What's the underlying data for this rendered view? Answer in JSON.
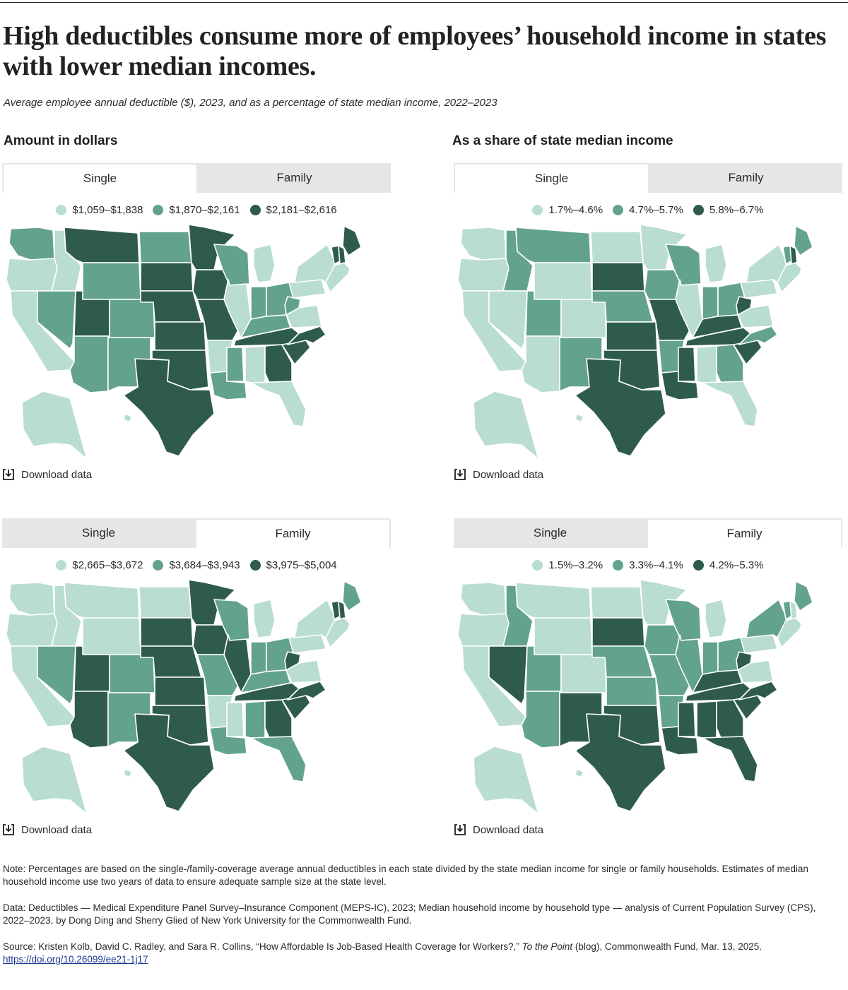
{
  "title": "High deductibles consume more of employees’ household income in states with lower median incomes.",
  "subtitle": "Average employee annual deductible ($), 2023, and as a percentage of state median income, 2022–2023",
  "sections": {
    "left": "Amount in dollars",
    "right": "As a share of state median income"
  },
  "colors": {
    "light": "#b9ddd1",
    "medium": "#62a28e",
    "dark": "#2f5b4f",
    "tab_bg": "#e6e6e6"
  },
  "download_label": "Download data",
  "panels": [
    {
      "tabs": [
        "Single",
        "Family"
      ],
      "active_tab": "Single",
      "legend": [
        "$1,059–$1,838",
        "$1,870–$2,161",
        "$2,181–$2,616"
      ],
      "states": {
        "WA": "medium",
        "OR": "light",
        "CA": "light",
        "ID": "light",
        "NV": "medium",
        "MT": "dark",
        "WY": "medium",
        "UT": "dark",
        "AZ": "medium",
        "CO": "medium",
        "NM": "medium",
        "ND": "medium",
        "SD": "dark",
        "NE": "dark",
        "KS": "dark",
        "OK": "dark",
        "TX": "dark",
        "MN": "dark",
        "IA": "dark",
        "MO": "dark",
        "AR": "light",
        "LA": "medium",
        "WI": "medium",
        "IL": "light",
        "MS": "medium",
        "MI": "light",
        "IN": "medium",
        "KY": "medium",
        "TN": "dark",
        "AL": "light",
        "OH": "medium",
        "WV": "medium",
        "GA": "dark",
        "FL": "light",
        "SC": "dark",
        "NC": "dark",
        "VA": "light",
        "PA": "light",
        "NY": "light",
        "ME": "dark",
        "VT": "dark",
        "NH": "dark",
        "NE6": "light",
        "AK": "light",
        "HI": "light"
      }
    },
    {
      "tabs": [
        "Single",
        "Family"
      ],
      "active_tab": "Single",
      "legend": [
        "1.7%–4.6%",
        "4.7%–5.7%",
        "5.8%–6.7%"
      ],
      "states": {
        "WA": "light",
        "OR": "light",
        "CA": "light",
        "ID": "medium",
        "NV": "light",
        "MT": "medium",
        "WY": "light",
        "UT": "medium",
        "AZ": "light",
        "CO": "light",
        "NM": "medium",
        "ND": "light",
        "SD": "dark",
        "NE": "medium",
        "KS": "dark",
        "OK": "dark",
        "TX": "dark",
        "MN": "light",
        "IA": "medium",
        "MO": "dark",
        "AR": "medium",
        "LA": "dark",
        "WI": "medium",
        "IL": "light",
        "MS": "dark",
        "MI": "light",
        "IN": "medium",
        "KY": "dark",
        "TN": "dark",
        "AL": "light",
        "OH": "medium",
        "WV": "dark",
        "GA": "medium",
        "FL": "light",
        "SC": "dark",
        "NC": "medium",
        "VA": "light",
        "PA": "light",
        "NY": "light",
        "ME": "medium",
        "VT": "medium",
        "NH": "dark",
        "NE6": "light",
        "AK": "light",
        "HI": "light"
      }
    },
    {
      "tabs": [
        "Single",
        "Family"
      ],
      "active_tab": "Family",
      "legend": [
        "$2,665–$3,672",
        "$3,684–$3,943",
        "$3,975–$5,004"
      ],
      "states": {
        "WA": "light",
        "OR": "light",
        "CA": "light",
        "ID": "light",
        "NV": "medium",
        "MT": "light",
        "WY": "light",
        "UT": "dark",
        "AZ": "dark",
        "CO": "medium",
        "NM": "medium",
        "ND": "light",
        "SD": "dark",
        "NE": "dark",
        "KS": "dark",
        "OK": "dark",
        "TX": "dark",
        "MN": "dark",
        "IA": "dark",
        "MO": "medium",
        "AR": "light",
        "LA": "medium",
        "WI": "medium",
        "IL": "dark",
        "MS": "light",
        "MI": "light",
        "IN": "medium",
        "KY": "medium",
        "TN": "dark",
        "AL": "medium",
        "OH": "medium",
        "WV": "dark",
        "GA": "dark",
        "FL": "medium",
        "SC": "dark",
        "NC": "dark",
        "VA": "light",
        "PA": "light",
        "NY": "light",
        "ME": "medium",
        "VT": "dark",
        "NH": "dark",
        "NE6": "light",
        "AK": "light",
        "HI": "light"
      }
    },
    {
      "tabs": [
        "Single",
        "Family"
      ],
      "active_tab": "Family",
      "legend": [
        "1.5%–3.2%",
        "3.3%–4.1%",
        "4.2%–5.3%"
      ],
      "states": {
        "WA": "light",
        "OR": "light",
        "CA": "light",
        "ID": "medium",
        "NV": "dark",
        "MT": "light",
        "WY": "light",
        "UT": "medium",
        "AZ": "medium",
        "CO": "light",
        "NM": "dark",
        "ND": "light",
        "SD": "dark",
        "NE": "medium",
        "KS": "medium",
        "OK": "dark",
        "TX": "dark",
        "MN": "light",
        "IA": "medium",
        "MO": "medium",
        "AR": "medium",
        "LA": "dark",
        "WI": "medium",
        "IL": "medium",
        "MS": "dark",
        "MI": "light",
        "IN": "medium",
        "KY": "dark",
        "TN": "dark",
        "AL": "dark",
        "OH": "medium",
        "WV": "dark",
        "GA": "dark",
        "FL": "dark",
        "SC": "dark",
        "NC": "dark",
        "VA": "light",
        "PA": "light",
        "NY": "medium",
        "ME": "medium",
        "VT": "medium",
        "NH": "light",
        "NE6": "light",
        "AK": "light",
        "HI": "light"
      }
    }
  ],
  "notes": {
    "note": "Note: Percentages are based on the single-/family-coverage average annual deductibles in each state divided by the state median income for single or family households. Estimates of median household income use two years of data to ensure adequate sample size at the state level.",
    "data": "Data: Deductibles — Medical Expenditure Panel Survey–Insurance Component (MEPS-IC), 2023; Median household income by household type — analysis of Current Population Survey (CPS), 2022–2023, by Dong Ding and Sherry Glied of New York University for the Commonwealth Fund.",
    "source_pre": "Source: Kristen Kolb, David C. Radley, and Sara R. Collins, “How Affordable Is Job-Based Health Coverage for Workers?,” ",
    "source_italic": "To the Point",
    "source_post": " (blog), Commonwealth Fund, Mar. 13, 2025.",
    "link": "https://doi.org/10.26099/ee21-1j17"
  }
}
